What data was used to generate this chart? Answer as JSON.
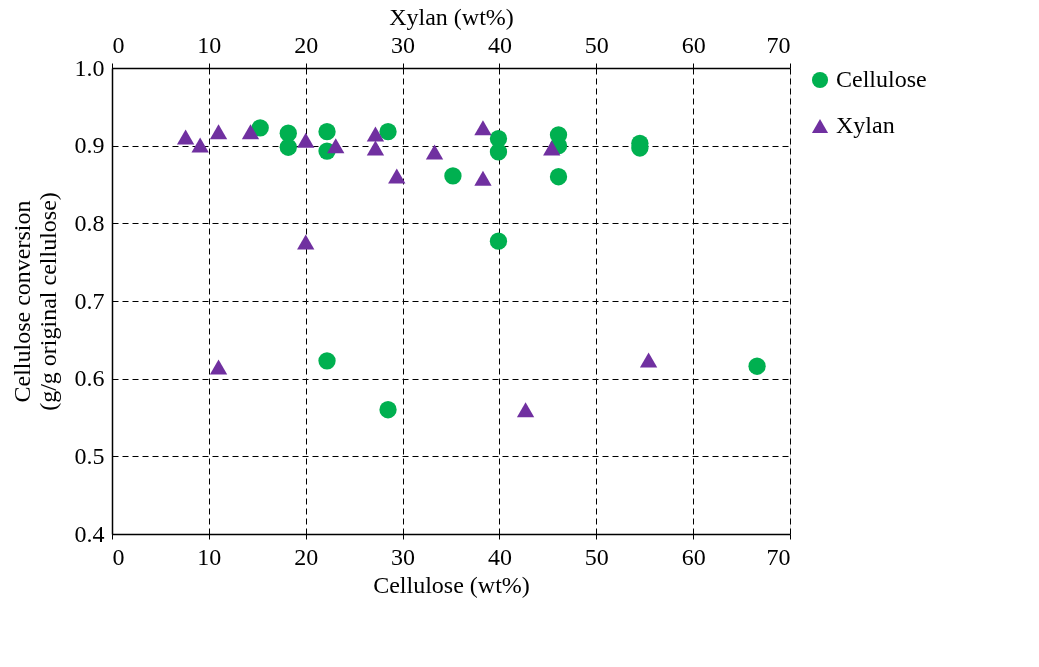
{
  "chart_data": {
    "type": "scatter",
    "xlabel": "Cellulose (wt%)",
    "x2label": "Xylan (wt%)",
    "ylabel": "Cellulose conversion (g/g original cellulose)",
    "xlim": [
      0,
      70
    ],
    "xticks": [
      0,
      10,
      20,
      30,
      40,
      50,
      60,
      70
    ],
    "x2lim": [
      0,
      70
    ],
    "x2ticks": [
      0,
      10,
      20,
      30,
      40,
      50,
      60,
      70
    ],
    "ylim": [
      0.4,
      1.0
    ],
    "yticks": [
      {
        "value": 0.4,
        "label": "0.4"
      },
      {
        "value": 0.5,
        "label": "0.5"
      },
      {
        "value": 0.6,
        "label": "0.6"
      },
      {
        "value": 0.7,
        "label": "0.7"
      },
      {
        "value": 0.8,
        "label": "0.8"
      },
      {
        "value": 0.9,
        "label": "0.9"
      },
      {
        "value": 1.0,
        "label": "1.0"
      }
    ],
    "grid": true,
    "legend": "right",
    "series": [
      {
        "name": "Cellulose",
        "color": "#00b050",
        "marker": "circle",
        "x": [
          15.3,
          18.2,
          18.2,
          22.2,
          22.2,
          28.5,
          39.9,
          39.9,
          46.1,
          46.1,
          46.1,
          35.2,
          39.9,
          54.5,
          54.5,
          22.2,
          28.5,
          66.6
        ],
        "values": [
          0.923,
          0.916,
          0.898,
          0.918,
          0.893,
          0.918,
          0.909,
          0.892,
          0.914,
          0.9,
          0.86,
          0.861,
          0.777,
          0.903,
          0.897,
          0.623,
          0.56,
          0.616
        ]
      },
      {
        "name": "Xylan",
        "color": "#7030a0",
        "marker": "triangle",
        "axis": "x2",
        "x": [
          7.6,
          9.1,
          11.0,
          14.3,
          20.0,
          23.1,
          27.2,
          27.2,
          29.4,
          33.3,
          38.3,
          38.3,
          45.4,
          20.0,
          11.0,
          55.4,
          42.7
        ],
        "values": [
          0.911,
          0.901,
          0.918,
          0.918,
          0.907,
          0.9,
          0.915,
          0.897,
          0.861,
          0.892,
          0.923,
          0.858,
          0.897,
          0.776,
          0.615,
          0.624,
          0.56
        ]
      }
    ]
  }
}
